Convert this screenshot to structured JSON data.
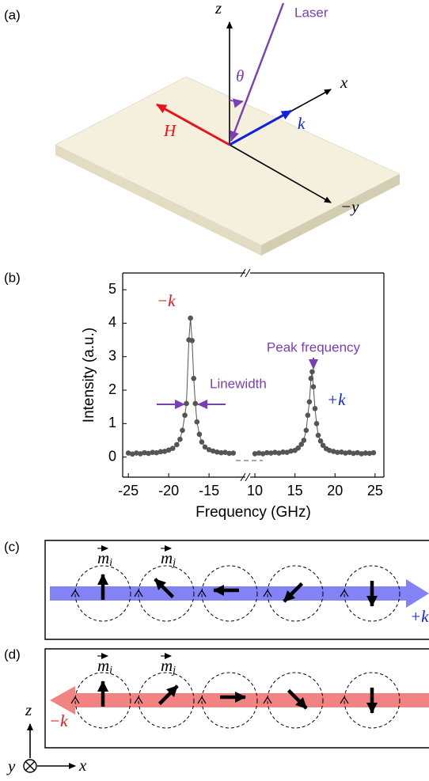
{
  "panel_a": {
    "label": "(a)",
    "z": "z",
    "x": "x",
    "y": "−y",
    "laser": "Laser",
    "theta": "θ",
    "H": "H",
    "k": "k"
  },
  "chart_data": {
    "type": "scatter",
    "label": "(b)",
    "xlabel": "Frequency (GHz)",
    "ylabel": "Intensity (a.u.)",
    "ylim": [
      -0.6,
      5.5
    ],
    "yticks": [
      0,
      1,
      2,
      3,
      4,
      5
    ],
    "segments": [
      {
        "xlim": [
          -25.7,
          -10.5
        ],
        "xticks": [
          -25,
          -20,
          -15
        ]
      },
      {
        "xlim": [
          9.4,
          26.1
        ],
        "xticks": [
          10,
          15,
          20,
          25
        ]
      }
    ],
    "color": "#555555",
    "series": [
      {
        "x": [
          -25,
          -24.5,
          -24,
          -23.5,
          -23,
          -22.5,
          -22,
          -21.5,
          -21,
          -20.5,
          -20,
          -19.5,
          -19,
          -18.6,
          -18.3,
          -18,
          -17.8,
          -17.5,
          -17.3,
          -17.1,
          -16.9,
          -16.7,
          -16.5,
          -16.2,
          -15.9,
          -15.5,
          -15,
          -14.5,
          -14,
          -13.5,
          -13,
          -12.5,
          -12
        ],
        "values": [
          0.12,
          0.09,
          0.12,
          0.1,
          0.13,
          0.11,
          0.14,
          0.13,
          0.16,
          0.17,
          0.21,
          0.26,
          0.37,
          0.53,
          0.8,
          1.25,
          1.6,
          3.5,
          4.15,
          3.48,
          2.35,
          1.6,
          1.05,
          0.68,
          0.45,
          0.3,
          0.22,
          0.18,
          0.15,
          0.13,
          0.14,
          0.11,
          0.12
        ]
      },
      {
        "x": [
          10,
          10.5,
          11,
          11.5,
          12,
          12.5,
          13,
          13.5,
          14,
          14.5,
          15,
          15.4,
          15.8,
          16.1,
          16.4,
          16.6,
          16.8,
          17,
          17.15,
          17.3,
          17.5,
          17.7,
          17.9,
          18.2,
          18.5,
          18.9,
          19.3,
          19.8,
          20.3,
          20.8,
          21.3,
          21.8,
          22.3,
          22.8,
          23.3,
          23.8,
          24.3,
          24.8
        ],
        "values": [
          0.1,
          0.12,
          0.1,
          0.13,
          0.12,
          0.14,
          0.12,
          0.15,
          0.14,
          0.18,
          0.2,
          0.27,
          0.38,
          0.5,
          0.8,
          1.25,
          1.65,
          2.35,
          2.55,
          2.1,
          1.45,
          1.0,
          0.65,
          0.48,
          0.35,
          0.25,
          0.2,
          0.17,
          0.14,
          0.15,
          0.12,
          0.14,
          0.11,
          0.13,
          0.1,
          0.12,
          0.11,
          0.13
        ]
      }
    ],
    "annotations": {
      "minus_k": "−k",
      "plus_k": "+k",
      "peak": "Peak frequency",
      "linewidth": "Linewidth"
    }
  },
  "panel_c": {
    "label": "(c)",
    "mi": {
      "symbol": "m",
      "sub": "i"
    },
    "mj": {
      "symbol": "m",
      "sub": "j"
    },
    "k": "+k"
  },
  "panel_d": {
    "label": "(d)",
    "mi": {
      "symbol": "m",
      "sub": "i"
    },
    "mj": {
      "symbol": "m",
      "sub": "j"
    },
    "k": "−k"
  },
  "axes_key": {
    "z": "z",
    "x": "x",
    "y": "y"
  }
}
